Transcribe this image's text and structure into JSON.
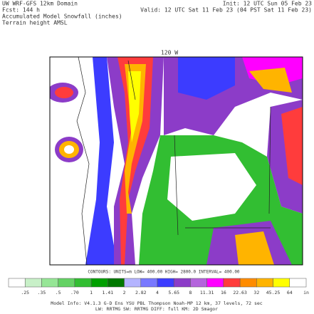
{
  "header": {
    "model": "UW WRF-GFS 12km Domain",
    "forecast": "Fcst: 144 h",
    "field": "Accumulated Model Snowfall (inches)",
    "overlay": "Terrain height AMSL",
    "init": "Init: 12 UTC Sun 05 Feb 23",
    "valid": "Valid: 12 UTC Sat 11 Feb 23 (04 PST Sat 11 Feb 23)"
  },
  "map": {
    "longitude_label": "120 W",
    "contours": "CONTOURS: UNITS=m LOW= 400.00 HIGH= 2800.0 INTERVAL= 400.00"
  },
  "colorbar": {
    "labels": [
      ".25",
      ".35",
      ".5",
      ".70",
      "1",
      "1.41",
      "2",
      "2.82",
      "4",
      "5.65",
      "8",
      "11.31",
      "16",
      "22.63",
      "32",
      "45.25",
      "64",
      "in"
    ],
    "colors": [
      "#ffffff",
      "#c8f0c8",
      "#96e696",
      "#64d264",
      "#32be32",
      "#00a000",
      "#007800",
      "#b4b4ff",
      "#7878ff",
      "#3c3cff",
      "#8c3cc8",
      "#b464dc",
      "#ff00ff",
      "#ff3c3c",
      "#ff8c00",
      "#ffb400",
      "#ffff00",
      "#ffffff"
    ]
  },
  "footer": {
    "line1": "Model Info: V4.1.3   G-D Ens YSU PBL   Thompson   Noah-MP   12 km,  37 levels,  72 sec",
    "line2": "LW: RRTMG  SW: RRTMG   DIFF: full   KM: 2D Smagor"
  }
}
